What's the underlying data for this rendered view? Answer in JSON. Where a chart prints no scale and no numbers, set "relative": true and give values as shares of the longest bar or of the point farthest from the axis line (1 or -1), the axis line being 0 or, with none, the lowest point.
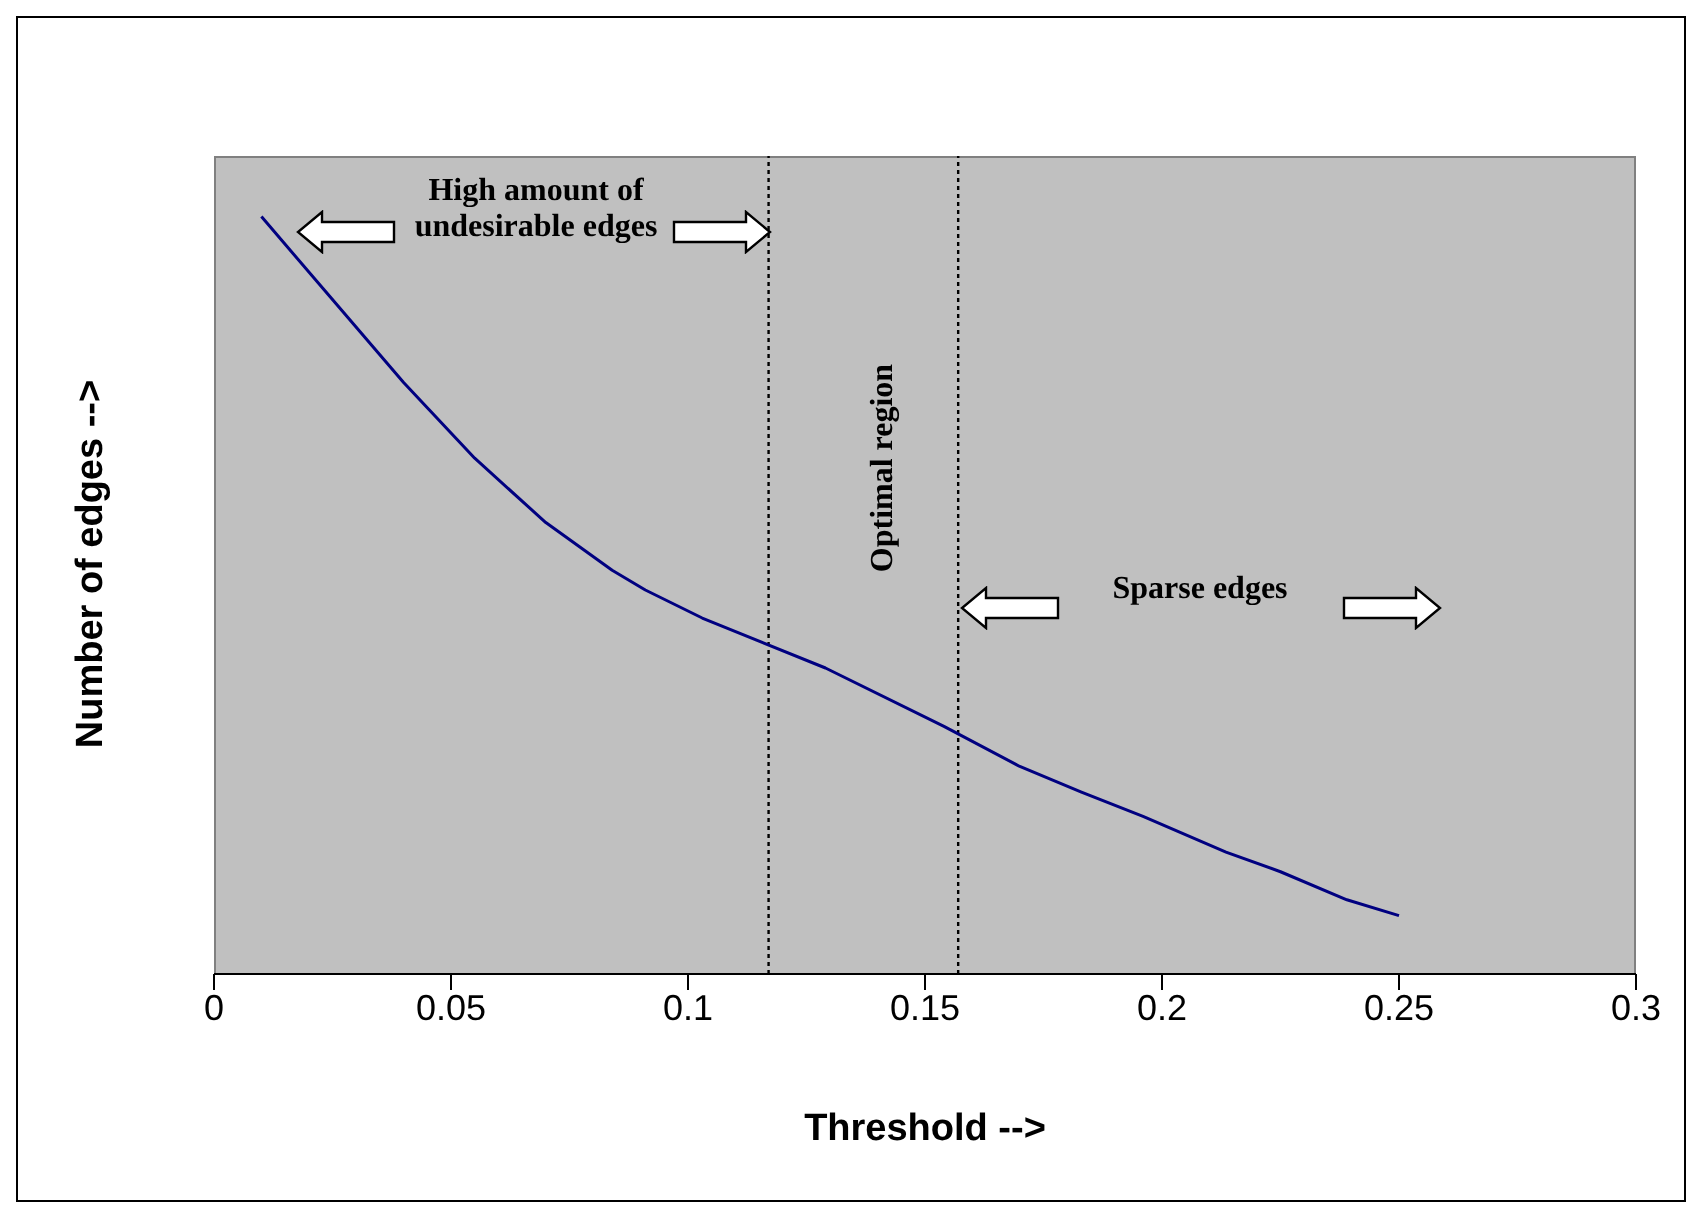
{
  "chart_data": {
    "type": "line",
    "xlabel": "Threshold -->",
    "ylabel": "Number of edges -->",
    "relative": true,
    "marker": "none",
    "xlim": [
      0,
      0.3
    ],
    "xticks": [
      0,
      0.05,
      0.1,
      0.15,
      0.2,
      0.25,
      0.3
    ],
    "x": [
      0.01,
      0.023,
      0.04,
      0.055,
      0.07,
      0.084,
      0.091,
      0.103,
      0.129,
      0.154,
      0.17,
      0.183,
      0.196,
      0.2135,
      0.225,
      0.239,
      0.25
    ],
    "series": [
      {
        "color": "#000080",
        "values": [
          1,
          0.905,
          0.781,
          0.681,
          0.596,
          0.533,
          0.507,
          0.47,
          0.404,
          0.327,
          0.274,
          0.24,
          0.208,
          0.161,
          0.135,
          0.098,
          0.077
        ]
      }
    ],
    "ref_lines": [
      {
        "axis": "x",
        "value": 0.117,
        "color": "#000000",
        "line_style": "dotted"
      },
      {
        "axis": "x",
        "value": 0.157,
        "color": "#000000",
        "line_style": "dotted"
      }
    ],
    "annotations": [
      "High amount of undesirable edges",
      "Optimal region",
      "Sparse edges"
    ]
  }
}
